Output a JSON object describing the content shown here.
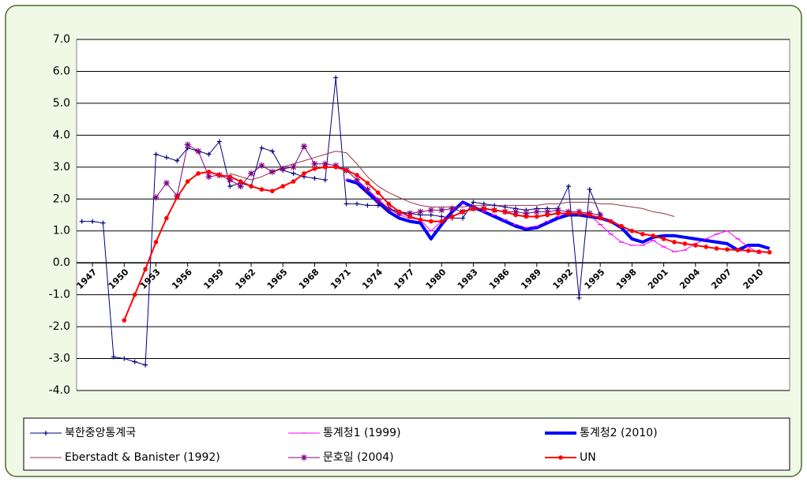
{
  "chart_data": {
    "type": "line",
    "x": [
      1946,
      1947,
      1948,
      1949,
      1950,
      1951,
      1952,
      1953,
      1954,
      1955,
      1956,
      1957,
      1958,
      1959,
      1960,
      1961,
      1962,
      1963,
      1964,
      1965,
      1966,
      1967,
      1968,
      1969,
      1970,
      1971,
      1972,
      1973,
      1974,
      1975,
      1976,
      1977,
      1978,
      1979,
      1980,
      1981,
      1982,
      1983,
      1984,
      1985,
      1986,
      1987,
      1988,
      1989,
      1990,
      1991,
      1992,
      1993,
      1994,
      1995,
      1996,
      1997,
      1998,
      1999,
      2000,
      2001,
      2002,
      2003,
      2004,
      2005,
      2006,
      2007,
      2008,
      2009,
      2010,
      2011
    ],
    "xlim": [
      1945.5,
      2012.9
    ],
    "xticks": [
      1947,
      1950,
      1953,
      1956,
      1959,
      1962,
      1965,
      1968,
      1971,
      1974,
      1977,
      1980,
      1983,
      1986,
      1989,
      1992,
      1995,
      1998,
      2001,
      2004,
      2007,
      2010
    ],
    "ylim": [
      -4,
      7
    ],
    "yticks": [
      {
        "value": -4,
        "label": "-4.0"
      },
      {
        "value": -3,
        "label": "-3.0"
      },
      {
        "value": -2,
        "label": "-2.0"
      },
      {
        "value": -1,
        "label": "-1.0"
      },
      {
        "value": 0,
        "label": "0.0"
      },
      {
        "value": 1,
        "label": "1.0"
      },
      {
        "value": 2,
        "label": "2.0"
      },
      {
        "value": 3,
        "label": "3.0"
      },
      {
        "value": 4,
        "label": "4.0"
      },
      {
        "value": 5,
        "label": "5.0"
      },
      {
        "value": 6,
        "label": "6.0"
      },
      {
        "value": 7,
        "label": "7.0"
      }
    ],
    "grid": true,
    "legend": "bottom",
    "series": [
      {
        "name": "북한중앙통계국",
        "color": "#000080",
        "line_width": 1,
        "marker": "plus",
        "values": [
          1.3,
          1.3,
          1.25,
          -2.95,
          -3.0,
          -3.1,
          -3.2,
          3.4,
          3.3,
          3.2,
          3.6,
          3.5,
          3.4,
          3.8,
          2.4,
          2.5,
          2.4,
          3.6,
          3.5,
          2.9,
          2.8,
          2.7,
          2.65,
          2.6,
          5.8,
          1.85,
          1.85,
          1.8,
          1.8,
          1.7,
          1.6,
          1.55,
          1.5,
          1.5,
          1.45,
          1.4,
          1.4,
          1.9,
          1.85,
          1.8,
          1.75,
          1.7,
          1.65,
          1.7,
          1.7,
          1.7,
          2.4,
          -1.1,
          2.3,
          1.5,
          null,
          null,
          null,
          null,
          null,
          null,
          null,
          null,
          null,
          null,
          null,
          null,
          null,
          null,
          null,
          null
        ]
      },
      {
        "name": "통계청1 (1999)",
        "color": "#ff00ff",
        "line_width": 1,
        "marker": "dash",
        "values": [
          null,
          null,
          null,
          null,
          null,
          null,
          null,
          null,
          null,
          null,
          null,
          null,
          null,
          null,
          null,
          null,
          null,
          null,
          null,
          null,
          null,
          null,
          null,
          null,
          null,
          2.6,
          2.55,
          2.3,
          2.0,
          1.7,
          1.5,
          1.4,
          1.35,
          1.0,
          1.3,
          1.65,
          1.85,
          1.75,
          1.6,
          1.5,
          1.35,
          1.2,
          1.1,
          1.15,
          1.3,
          1.45,
          1.55,
          1.55,
          1.5,
          1.2,
          0.9,
          0.65,
          0.55,
          0.55,
          0.7,
          0.5,
          0.35,
          0.4,
          0.6,
          0.75,
          0.9,
          1.0,
          0.75,
          0.5,
          0.3,
          null
        ]
      },
      {
        "name": "통계청2 (2010)",
        "color": "#0000ff",
        "line_width": 4,
        "marker": "none",
        "values": [
          null,
          null,
          null,
          null,
          null,
          null,
          null,
          null,
          null,
          null,
          null,
          null,
          null,
          null,
          null,
          null,
          null,
          null,
          null,
          null,
          null,
          null,
          null,
          null,
          null,
          2.6,
          2.5,
          2.2,
          1.9,
          1.6,
          1.4,
          1.3,
          1.25,
          0.75,
          1.2,
          1.6,
          1.9,
          1.75,
          1.6,
          1.45,
          1.3,
          1.15,
          1.05,
          1.1,
          1.25,
          1.4,
          1.5,
          1.5,
          1.45,
          1.4,
          1.3,
          1.1,
          0.75,
          0.65,
          0.8,
          0.85,
          0.85,
          0.8,
          0.75,
          0.7,
          0.65,
          0.6,
          0.4,
          0.55,
          0.55,
          0.45
        ]
      },
      {
        "name": "Eberstadt & Banister (1992)",
        "color": "#993344",
        "line_width": 1,
        "marker": "none",
        "values": [
          null,
          null,
          null,
          null,
          null,
          null,
          null,
          null,
          null,
          null,
          null,
          null,
          null,
          null,
          2.8,
          2.7,
          2.6,
          2.7,
          2.85,
          3.0,
          3.1,
          3.2,
          3.3,
          3.4,
          3.5,
          3.45,
          3.1,
          2.7,
          2.4,
          2.2,
          2.05,
          1.9,
          1.8,
          1.75,
          1.75,
          1.75,
          1.75,
          1.8,
          1.8,
          1.8,
          1.8,
          1.8,
          1.8,
          1.8,
          1.85,
          1.85,
          1.9,
          1.9,
          1.9,
          1.85,
          1.85,
          1.8,
          1.75,
          1.7,
          1.6,
          1.55,
          1.45,
          null,
          null,
          null,
          null,
          null,
          null,
          null,
          null,
          null
        ]
      },
      {
        "name": "문호일 (2004)",
        "color": "#800080",
        "line_width": 1,
        "marker": "star",
        "values": [
          null,
          null,
          null,
          null,
          null,
          null,
          null,
          2.05,
          2.5,
          2.1,
          3.7,
          3.5,
          2.7,
          2.75,
          2.6,
          2.4,
          2.8,
          3.05,
          2.85,
          2.95,
          3.0,
          3.65,
          3.1,
          3.1,
          3.05,
          2.9,
          2.6,
          2.3,
          1.95,
          1.7,
          1.55,
          1.55,
          1.6,
          1.65,
          1.65,
          1.7,
          1.6,
          1.7,
          1.7,
          1.65,
          1.6,
          1.6,
          1.55,
          1.6,
          1.6,
          1.65,
          1.6,
          1.6,
          1.55,
          1.5,
          null,
          null,
          null,
          null,
          null,
          null,
          null,
          null,
          null,
          null,
          null,
          null,
          null,
          null,
          null,
          null
        ]
      },
      {
        "name": "UN",
        "color": "#ff0000",
        "line_width": 2,
        "marker": "circle",
        "values": [
          null,
          null,
          null,
          null,
          -1.8,
          -1.0,
          -0.2,
          0.65,
          1.4,
          2.05,
          2.55,
          2.8,
          2.85,
          2.75,
          2.7,
          2.55,
          2.4,
          2.3,
          2.25,
          2.4,
          2.55,
          2.8,
          2.95,
          3.0,
          3.0,
          2.9,
          2.75,
          2.5,
          2.2,
          1.85,
          1.6,
          1.45,
          1.35,
          1.3,
          1.3,
          1.45,
          1.6,
          1.7,
          1.7,
          1.65,
          1.6,
          1.5,
          1.45,
          1.45,
          1.5,
          1.55,
          1.55,
          1.55,
          1.5,
          1.4,
          1.3,
          1.15,
          1.0,
          0.9,
          0.85,
          0.75,
          0.65,
          0.6,
          0.55,
          0.5,
          0.45,
          0.42,
          0.4,
          0.38,
          0.35,
          0.33
        ]
      }
    ]
  }
}
